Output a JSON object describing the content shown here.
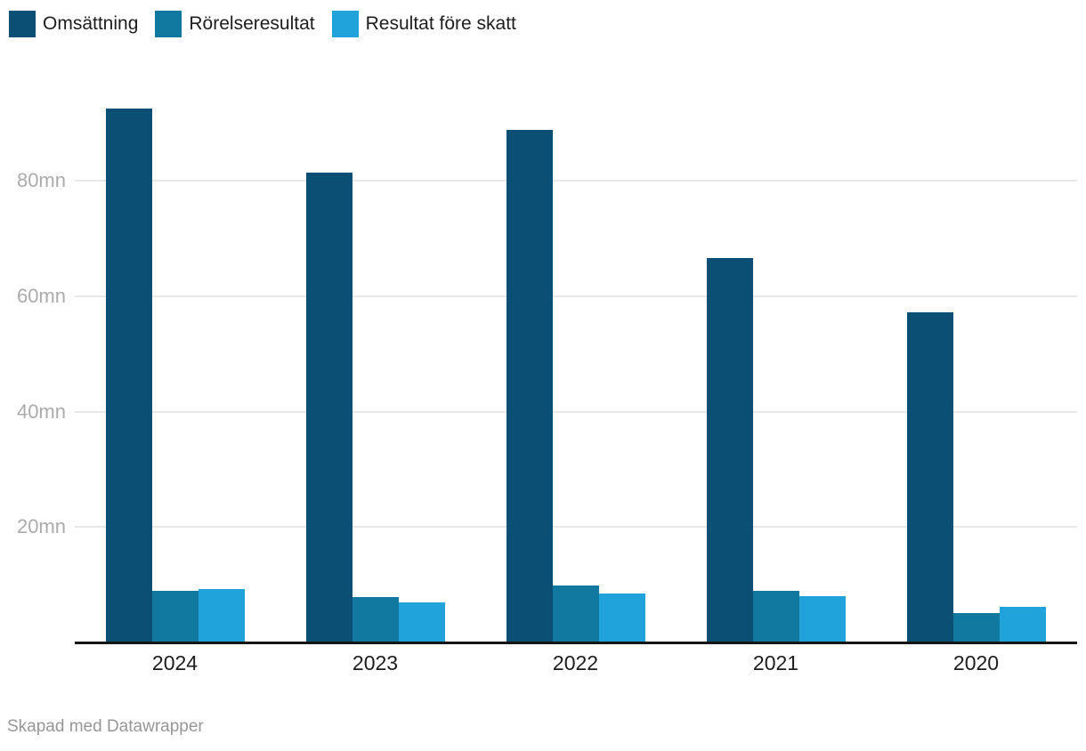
{
  "chart_data": {
    "type": "bar",
    "title": "",
    "xlabel": "",
    "ylabel": "",
    "unit": "mn",
    "categories": [
      "2024",
      "2023",
      "2022",
      "2021",
      "2020"
    ],
    "series": [
      {
        "name": "Omsättning",
        "color": "#0b4f75",
        "values": [
          92.5,
          81.5,
          88.8,
          66.6,
          57.2
        ]
      },
      {
        "name": "Rörelseresultat",
        "color": "#1178a0",
        "values": [
          8.9,
          7.9,
          9.9,
          9.0,
          5.1
        ]
      },
      {
        "name": "Resultat före skatt",
        "color": "#20a3da",
        "values": [
          9.2,
          6.9,
          8.5,
          8.0,
          6.1
        ]
      }
    ],
    "y_ticks": [
      {
        "value": 20,
        "label": "20mn"
      },
      {
        "value": 40,
        "label": "40mn"
      },
      {
        "value": 60,
        "label": "60mn"
      },
      {
        "value": 80,
        "label": "80mn"
      }
    ],
    "ylim": [
      0,
      97
    ],
    "grid": "horizontal",
    "legend_position": "top-left",
    "axis_color": "#161616",
    "gridline_color": "#e8e8e8"
  },
  "footer": {
    "text": "Skapad med Datawrapper"
  }
}
